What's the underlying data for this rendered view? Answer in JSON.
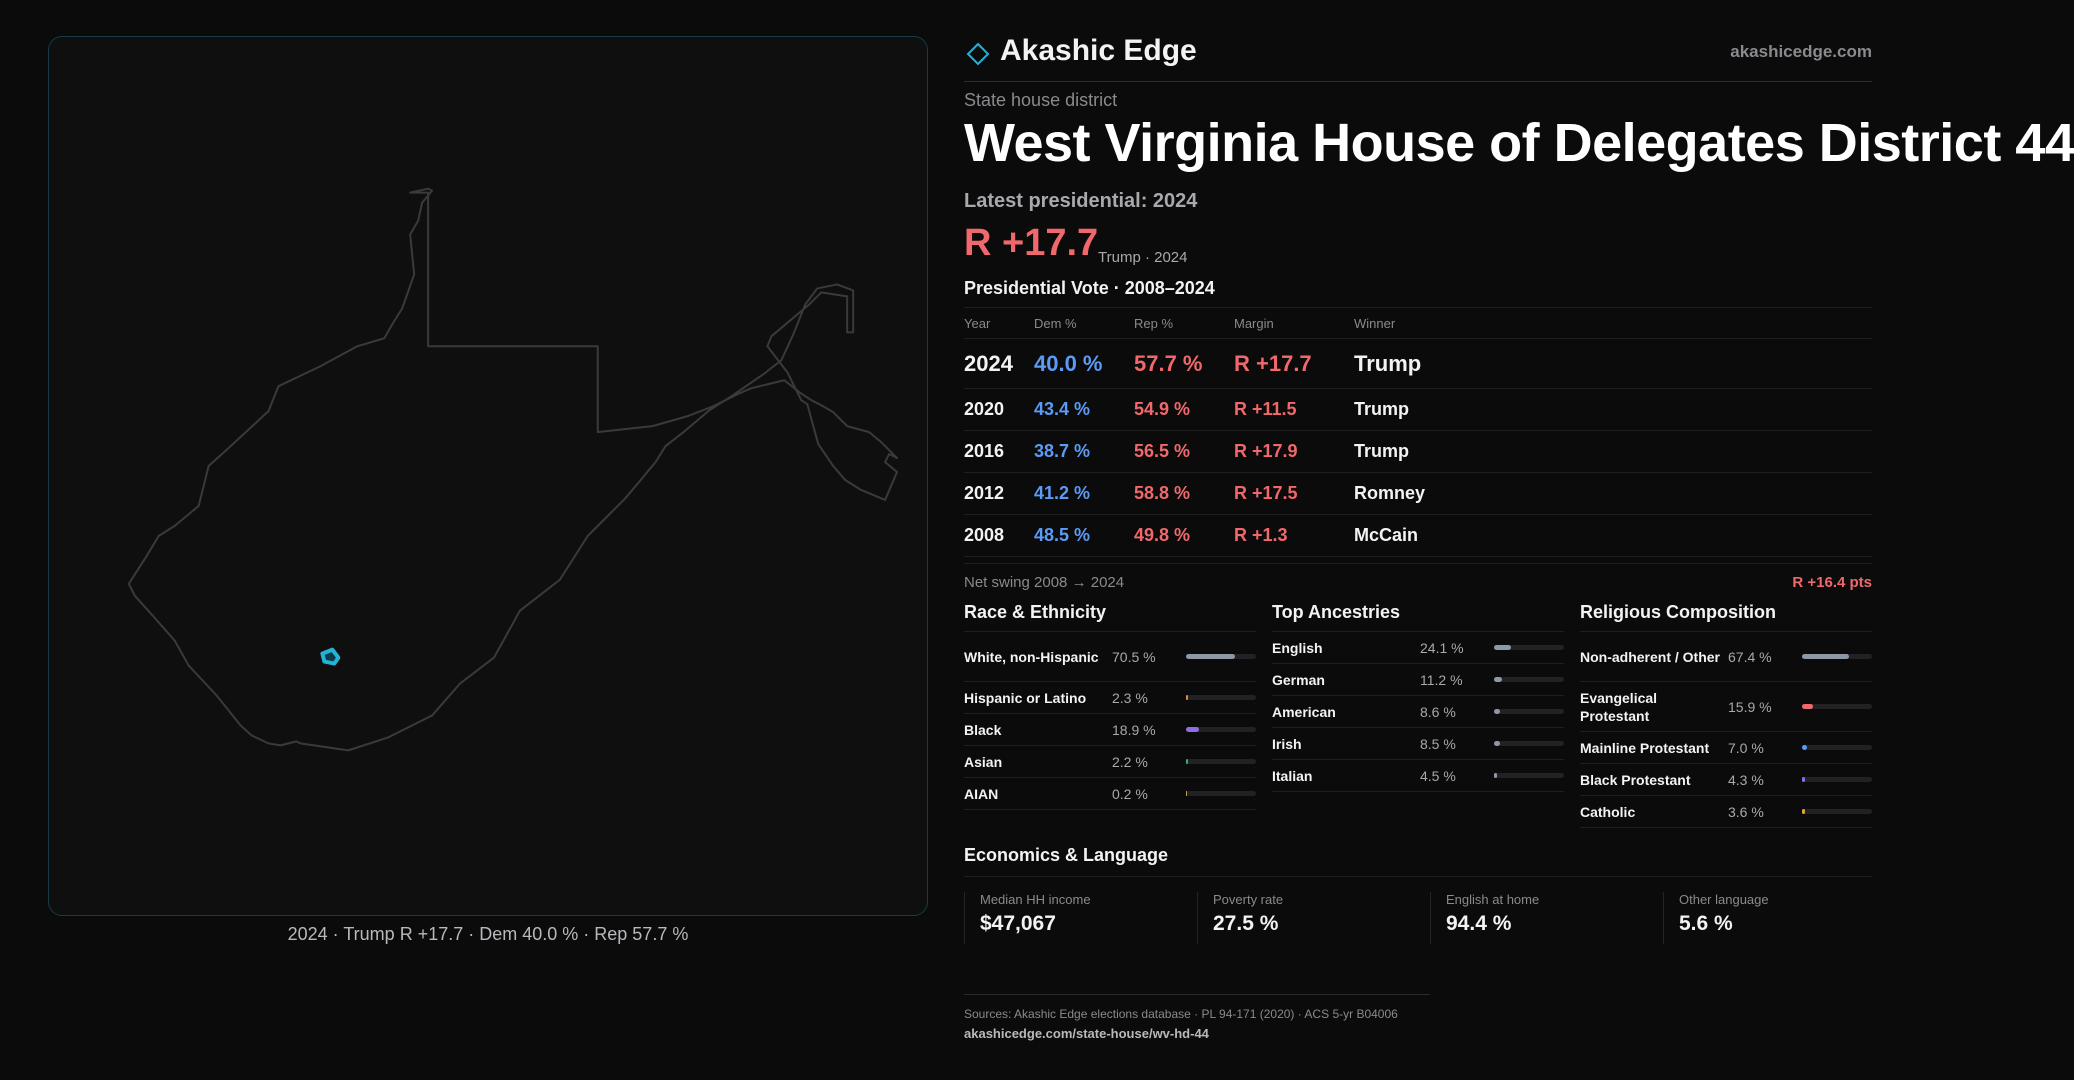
{
  "map": {
    "caption": "2024 · Trump R +17.7 · Dem 40.0 % · Rep 57.7 %"
  },
  "brand": {
    "name": "Akashic Edge",
    "url": "akashicedge.com",
    "accent": "#22b3d6"
  },
  "header": {
    "kind": "State house district",
    "title": "West Virginia House of Delegates District 44",
    "latest": "Latest presidential: 2024",
    "margin": "R +17.7",
    "margin_sub": "Trump · 2024"
  },
  "presidential": {
    "title": "Presidential Vote · 2008–2024",
    "columns": [
      "Year",
      "Dem %",
      "Rep %",
      "Margin",
      "Winner"
    ],
    "rows": [
      {
        "year": "2024",
        "dem": "40.0 %",
        "rep": "57.7 %",
        "margin": "R +17.7",
        "winner": "Trump"
      },
      {
        "year": "2020",
        "dem": "43.4 %",
        "rep": "54.9 %",
        "margin": "R +11.5",
        "winner": "Trump"
      },
      {
        "year": "2016",
        "dem": "38.7 %",
        "rep": "56.5 %",
        "margin": "R +17.9",
        "winner": "Trump"
      },
      {
        "year": "2012",
        "dem": "41.2 %",
        "rep": "58.8 %",
        "margin": "R +17.5",
        "winner": "Romney"
      },
      {
        "year": "2008",
        "dem": "48.5 %",
        "rep": "49.8 %",
        "margin": "R +1.3",
        "winner": "McCain"
      }
    ],
    "swing_label": "Net swing 2008 → 2024",
    "swing_value": "R +16.4 pts"
  },
  "race": {
    "title": "Race & Ethnicity",
    "items": [
      {
        "label": "White, non-Hispanic",
        "value": "70.5 %",
        "fraction": 0.705,
        "color": "#8e97a6"
      },
      {
        "label": "Hispanic or Latino",
        "value": "2.3 %",
        "fraction": 0.023,
        "color": "#e28a3b"
      },
      {
        "label": "Black",
        "value": "18.9 %",
        "fraction": 0.189,
        "color": "#8e6ee0"
      },
      {
        "label": "Asian",
        "value": "2.2 %",
        "fraction": 0.022,
        "color": "#2fb07a"
      },
      {
        "label": "AIAN",
        "value": "0.2 %",
        "fraction": 0.002,
        "color": "#c4a24a"
      }
    ]
  },
  "ancestry": {
    "title": "Top Ancestries",
    "items": [
      {
        "label": "English",
        "value": "24.1 %",
        "fraction": 0.241,
        "color": "#8e97a6"
      },
      {
        "label": "German",
        "value": "11.2 %",
        "fraction": 0.112,
        "color": "#8e97a6"
      },
      {
        "label": "American",
        "value": "8.6 %",
        "fraction": 0.086,
        "color": "#8e97a6"
      },
      {
        "label": "Irish",
        "value": "8.5 %",
        "fraction": 0.085,
        "color": "#8e97a6"
      },
      {
        "label": "Italian",
        "value": "4.5 %",
        "fraction": 0.045,
        "color": "#8e97a6"
      }
    ]
  },
  "religion": {
    "title": "Religious Composition",
    "items": [
      {
        "label": "Non-adherent / Other",
        "value": "67.4 %",
        "fraction": 0.674,
        "color": "#8e97a6"
      },
      {
        "label": "Evangelical Protestant",
        "value": "15.9 %",
        "fraction": 0.159,
        "color": "#f0686b"
      },
      {
        "label": "Mainline Protestant",
        "value": "7.0 %",
        "fraction": 0.07,
        "color": "#5b9bf5"
      },
      {
        "label": "Black Protestant",
        "value": "4.3 %",
        "fraction": 0.043,
        "color": "#8e6ee0"
      },
      {
        "label": "Catholic",
        "value": "3.6 %",
        "fraction": 0.036,
        "color": "#e2a23b"
      }
    ]
  },
  "economics": {
    "title": "Economics & Language",
    "cells": [
      {
        "label": "Median HH income",
        "value": "$47,067"
      },
      {
        "label": "Poverty rate",
        "value": "27.5 %"
      },
      {
        "label": "English at home",
        "value": "94.4 %"
      },
      {
        "label": "Other language",
        "value": "5.6 %"
      }
    ]
  },
  "footer": {
    "sources": "Sources: Akashic Edge elections database · PL 94-171 (2020) · ACS 5-yr B04006",
    "url": "akashicedge.com/state-house/wv-hd-44"
  }
}
